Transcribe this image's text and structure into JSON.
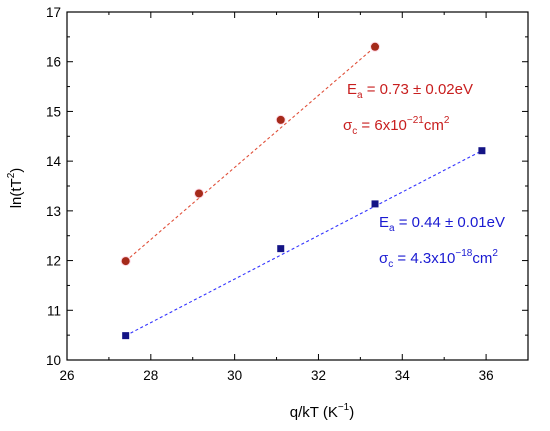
{
  "chart_data": {
    "type": "scatter",
    "xlabel": {
      "main": "q/kT (K",
      "sup": "−1",
      "end": ")"
    },
    "ylabel": {
      "main": "ln(tT",
      "sup": "2",
      "end": ")"
    },
    "xlim": [
      26,
      37
    ],
    "ylim": [
      10,
      17
    ],
    "x_ticks": [
      "26",
      "28",
      "30",
      "32",
      "34",
      "36"
    ],
    "y_ticks": [
      "10",
      "11",
      "12",
      "13",
      "14",
      "15",
      "16",
      "17"
    ],
    "grid": false,
    "series": [
      {
        "marker": "circle",
        "color": "#a52a1a",
        "line_color": "#e0503a",
        "x": [
          27.4,
          29.15,
          31.1,
          33.35
        ],
        "y": [
          11.99,
          13.35,
          14.83,
          16.3
        ],
        "fit": {
          "x": [
            27.4,
            33.35
          ],
          "y": [
            11.99,
            16.3
          ]
        }
      },
      {
        "marker": "square",
        "color": "#141485",
        "line_color": "#3333ff",
        "x": [
          27.4,
          31.1,
          33.35,
          35.9
        ],
        "y": [
          10.49,
          12.24,
          13.14,
          14.21
        ],
        "fit": {
          "x": [
            27.4,
            35.9
          ],
          "y": [
            10.49,
            14.21
          ]
        }
      }
    ],
    "annotations": [
      {
        "color": "#c81e1e",
        "ea": {
          "sym": "E",
          "sub": "a",
          "text": " = 0.73 ± 0.02eV"
        },
        "sigma": {
          "sym": "σ",
          "sub": "c",
          "pre": " = 6x10",
          "sup": "−21",
          "post": "cm",
          "unit_sup": "2"
        }
      },
      {
        "color": "#1a1ad2",
        "ea": {
          "sym": "E",
          "sub": "a",
          "text": " = 0.44 ± 0.01eV"
        },
        "sigma": {
          "sym": "σ",
          "sub": "c",
          "pre": " = 4.3x10",
          "sup": "−18",
          "post": "cm",
          "unit_sup": "2"
        }
      }
    ]
  }
}
